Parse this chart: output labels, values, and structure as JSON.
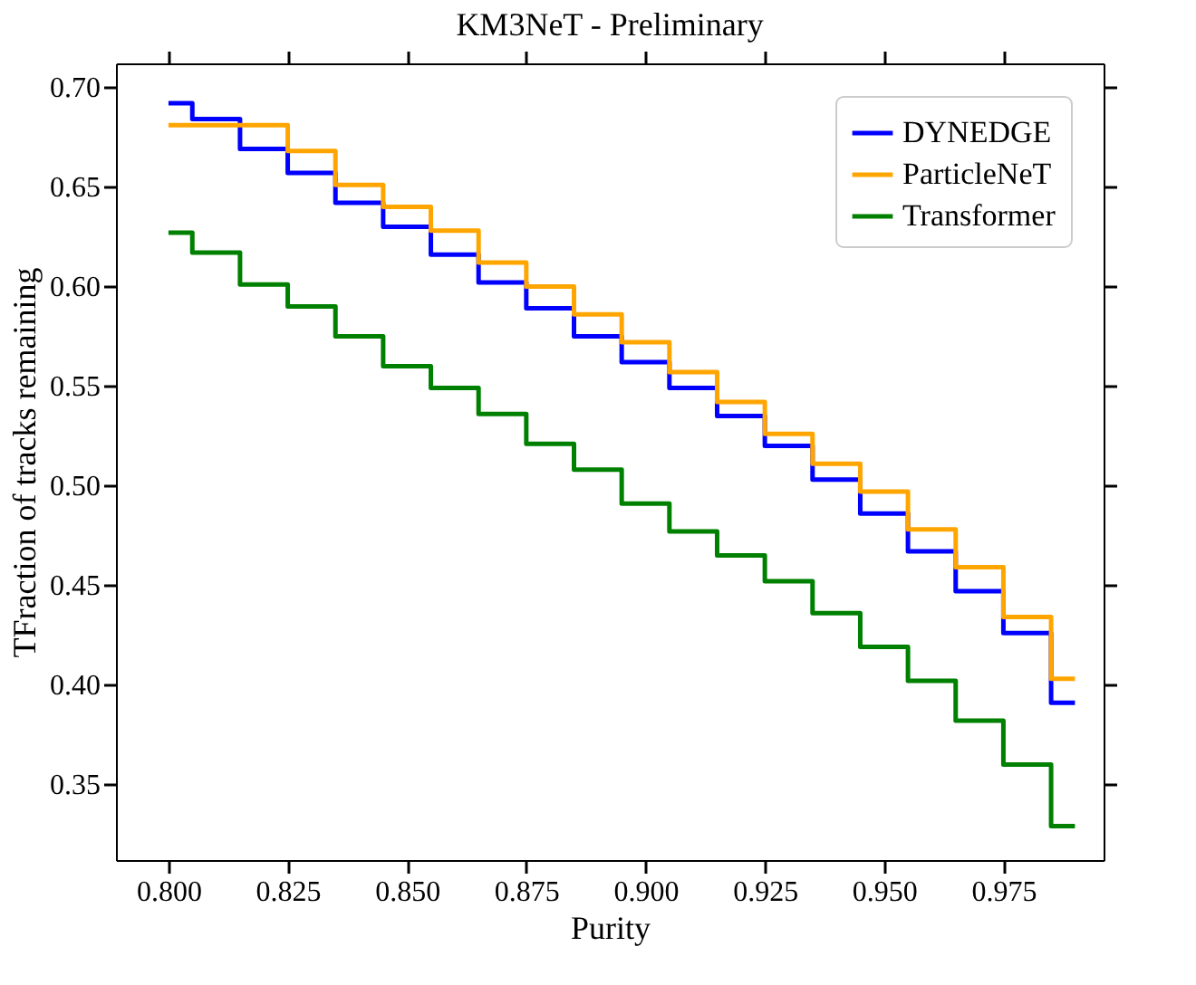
{
  "chart_data": {
    "type": "step",
    "title": "KM3NeT - Preliminary",
    "xlabel": "Purity",
    "ylabel": "TFraction of tracks remaining",
    "x": [
      0.8,
      0.81,
      0.82,
      0.83,
      0.84,
      0.85,
      0.86,
      0.87,
      0.88,
      0.89,
      0.9,
      0.91,
      0.92,
      0.93,
      0.94,
      0.95,
      0.96,
      0.97,
      0.98,
      0.99
    ],
    "series": [
      {
        "name": "DYNEDGE",
        "color": "#0000ff",
        "values": [
          0.692,
          0.684,
          0.669,
          0.657,
          0.642,
          0.63,
          0.616,
          0.602,
          0.589,
          0.575,
          0.562,
          0.549,
          0.535,
          0.52,
          0.503,
          0.486,
          0.467,
          0.447,
          0.426,
          0.391
        ]
      },
      {
        "name": "ParticleNeT",
        "color": "#ffa500",
        "values": [
          0.681,
          0.681,
          0.681,
          0.668,
          0.651,
          0.64,
          0.628,
          0.612,
          0.6,
          0.586,
          0.572,
          0.557,
          0.542,
          0.526,
          0.511,
          0.497,
          0.478,
          0.459,
          0.434,
          0.403
        ]
      },
      {
        "name": "Transformer",
        "color": "#008000",
        "values": [
          0.627,
          0.617,
          0.601,
          0.59,
          0.575,
          0.56,
          0.549,
          0.536,
          0.521,
          0.508,
          0.491,
          0.477,
          0.465,
          0.452,
          0.436,
          0.419,
          0.402,
          0.382,
          0.36,
          0.329
        ]
      }
    ],
    "xlim": [
      0.789,
      0.996
    ],
    "ylim": [
      0.312,
      0.712
    ],
    "xticks": [
      {
        "value": 0.8,
        "label": "0.800"
      },
      0.825,
      {
        "value": 0.85,
        "label": "0.850"
      },
      0.875,
      {
        "value": 0.9,
        "label": "0.900"
      },
      0.925,
      {
        "value": 0.95,
        "label": "0.950"
      },
      0.975
    ],
    "yticks": [
      0.35,
      {
        "value": 0.4,
        "label": "0.40"
      },
      0.45,
      {
        "value": 0.5,
        "label": "0.50"
      },
      0.55,
      {
        "value": 0.6,
        "label": "0.60"
      },
      0.65,
      {
        "value": 0.7,
        "label": "0.70"
      }
    ],
    "legend": "top right",
    "grid": false,
    "line_style": "solid",
    "marker": "none"
  }
}
